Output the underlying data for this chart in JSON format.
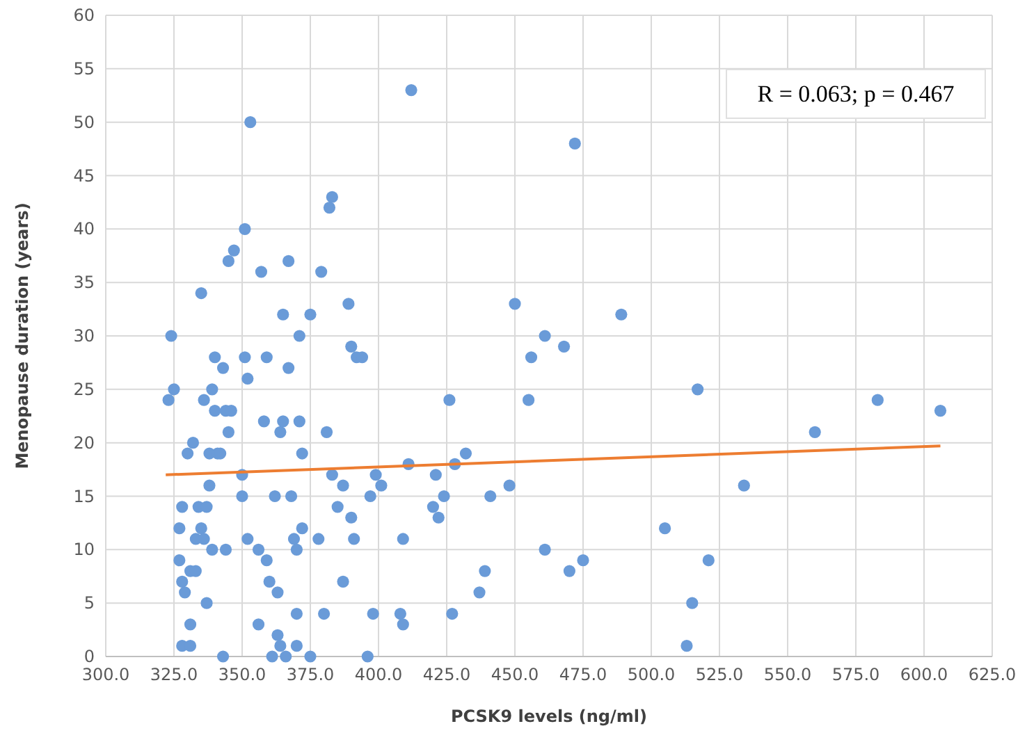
{
  "chart_data": {
    "type": "scatter",
    "xlabel": "PCSK9 levels (ng/ml)",
    "ylabel": "Menopause duration (years)",
    "xlim": [
      300,
      625
    ],
    "xticks": [
      {
        "value": 300,
        "label": "300.0"
      },
      {
        "value": 325,
        "label": "325.0"
      },
      {
        "value": 350,
        "label": "350.0"
      },
      {
        "value": 375,
        "label": "375.0"
      },
      {
        "value": 400,
        "label": "400.0"
      },
      {
        "value": 425,
        "label": "425.0"
      },
      {
        "value": 450,
        "label": "450.0"
      },
      {
        "value": 475,
        "label": "475.0"
      },
      {
        "value": 500,
        "label": "500.0"
      },
      {
        "value": 525,
        "label": "525.0"
      },
      {
        "value": 550,
        "label": "550.0"
      },
      {
        "value": 575,
        "label": "575.0"
      },
      {
        "value": 600,
        "label": "600.0"
      },
      {
        "value": 625,
        "label": "625.0"
      }
    ],
    "ylim": [
      0,
      60
    ],
    "yticks": [
      0,
      5,
      10,
      15,
      20,
      25,
      30,
      35,
      40,
      45,
      50,
      55,
      60
    ],
    "grid": true,
    "annotations": [
      "R = 0.063; p = 0.467"
    ],
    "series": [
      {
        "color": "#6a9bd8",
        "marker": "circle",
        "x": [
          323,
          324,
          325,
          327,
          327,
          328,
          328,
          328,
          329,
          330,
          331,
          331,
          331,
          332,
          333,
          333,
          334,
          335,
          335,
          336,
          336,
          337,
          337,
          338,
          338,
          339,
          339,
          340,
          340,
          341,
          342,
          343,
          343,
          344,
          344,
          345,
          345,
          346,
          347,
          350,
          350,
          351,
          351,
          352,
          352,
          353,
          356,
          356,
          357,
          358,
          359,
          359,
          360,
          361,
          362,
          363,
          363,
          364,
          364,
          365,
          365,
          366,
          367,
          367,
          368,
          369,
          370,
          370,
          370,
          371,
          371,
          372,
          372,
          375,
          375,
          378,
          379,
          380,
          381,
          382,
          383,
          383,
          385,
          387,
          387,
          389,
          390,
          390,
          391,
          392,
          394,
          396,
          397,
          398,
          399,
          401,
          408,
          409,
          409,
          411,
          412,
          420,
          421,
          422,
          424,
          426,
          427,
          428,
          432,
          437,
          439,
          441,
          448,
          450,
          455,
          456,
          461,
          461,
          468,
          470,
          472,
          475,
          489,
          505,
          513,
          515,
          517,
          521,
          534,
          560,
          583,
          606
        ],
        "values": [
          24,
          30,
          25,
          9,
          12,
          14,
          7,
          1,
          6,
          19,
          1,
          3,
          8,
          20,
          8,
          11,
          14,
          12,
          34,
          24,
          11,
          14,
          5,
          16,
          19,
          25,
          10,
          23,
          28,
          19,
          19,
          0,
          27,
          10,
          23,
          21,
          37,
          23,
          38,
          17,
          15,
          40,
          28,
          11,
          26,
          50,
          3,
          10,
          36,
          22,
          9,
          28,
          7,
          0,
          15,
          2,
          6,
          1,
          21,
          22,
          32,
          0,
          27,
          37,
          15,
          11,
          10,
          4,
          1,
          22,
          30,
          19,
          12,
          32,
          0,
          11,
          36,
          4,
          21,
          42,
          17,
          43,
          14,
          16,
          7,
          33,
          13,
          29,
          11,
          28,
          28,
          0,
          15,
          4,
          17,
          16,
          4,
          3,
          11,
          18,
          53,
          14,
          17,
          13,
          15,
          24,
          4,
          18,
          19,
          6,
          8,
          15,
          16,
          33,
          24,
          28,
          10,
          30,
          29,
          8,
          48,
          9,
          32,
          12,
          1,
          5,
          25,
          9,
          16,
          21,
          24,
          23
        ]
      },
      {
        "type": "line",
        "marker": "none",
        "color": "#ed7d31",
        "x": [
          322,
          606
        ],
        "values": [
          17,
          19.7
        ]
      }
    ]
  }
}
